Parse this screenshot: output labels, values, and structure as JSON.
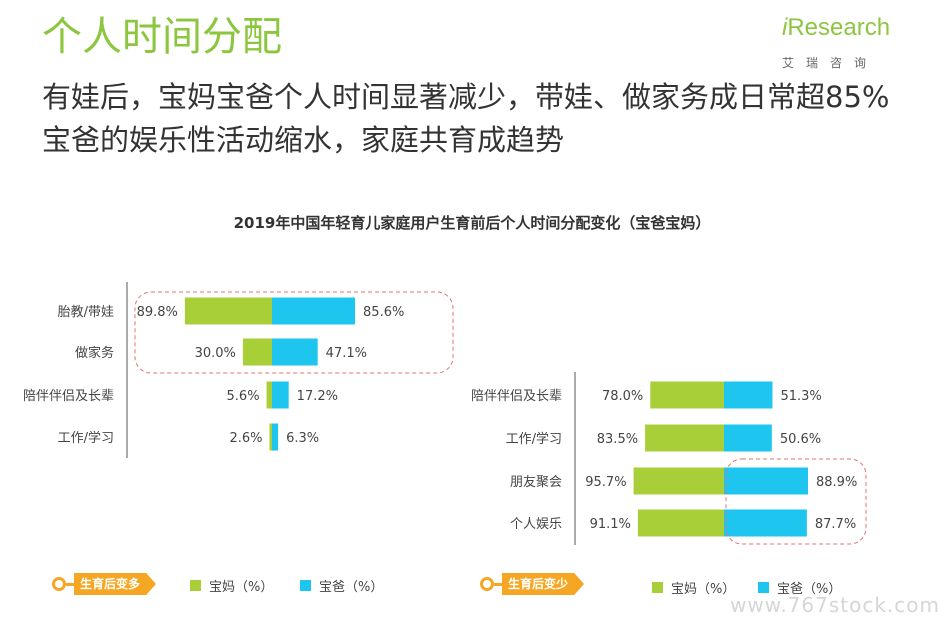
{
  "header": {
    "title": "个人时间分配",
    "subtitle": "有娃后，宝妈宝爸个人时间显著减少，带娃、做家务成日常超85%宝爸的娱乐性活动缩水，家庭共育成趋势"
  },
  "logo": {
    "main_i": "i",
    "main_text": "Research",
    "sub": "艾瑞咨询"
  },
  "colors": {
    "mom": "#a9cf38",
    "dad": "#1ec6ef",
    "accent": "#f5a623",
    "dash": "#e57373"
  },
  "chart_data": [
    {
      "type": "bar",
      "title": "2019年中国年轻育儿家庭用户生育前后个人时间分配变化（宝爸宝妈）",
      "group_label": "生育后变多",
      "categories": [
        "胎教/带娃",
        "做家务",
        "陪伴伴侣及长辈",
        "工作/学习"
      ],
      "series": [
        {
          "name": "宝妈（%）",
          "values": [
            89.8,
            30.0,
            5.6,
            2.6
          ]
        },
        {
          "name": "宝爸（%）",
          "values": [
            85.6,
            47.1,
            17.2,
            6.3
          ]
        }
      ],
      "value_labels_mom": [
        "89.8%",
        "30.0%",
        "5.6%",
        "2.6%"
      ],
      "value_labels_dad": [
        "85.6%",
        "47.1%",
        "17.2%",
        "6.3%"
      ],
      "highlighted": [
        "胎教/带娃",
        "做家务"
      ]
    },
    {
      "type": "bar",
      "group_label": "生育后变少",
      "categories": [
        "陪伴伴侣及长辈",
        "工作/学习",
        "朋友聚会",
        "个人娱乐"
      ],
      "series": [
        {
          "name": "宝妈（%）",
          "values": [
            78.0,
            83.5,
            95.7,
            91.1
          ]
        },
        {
          "name": "宝爸（%）",
          "values": [
            51.3,
            50.6,
            88.9,
            87.7
          ]
        }
      ],
      "value_labels_mom": [
        "78.0%",
        "83.5%",
        "95.7%",
        "91.1%"
      ],
      "value_labels_dad": [
        "51.3%",
        "50.6%",
        "88.9%",
        "87.7%"
      ],
      "highlighted": [
        "朋友聚会",
        "个人娱乐"
      ]
    }
  ],
  "legend": {
    "left": {
      "tag": "生育后变多",
      "mom": "宝妈（%）",
      "dad": "宝爸（%）"
    },
    "right": {
      "tag": "生育后变少",
      "mom": "宝妈（%）",
      "dad": "宝爸（%）"
    }
  },
  "watermark": "www.767stock.com"
}
